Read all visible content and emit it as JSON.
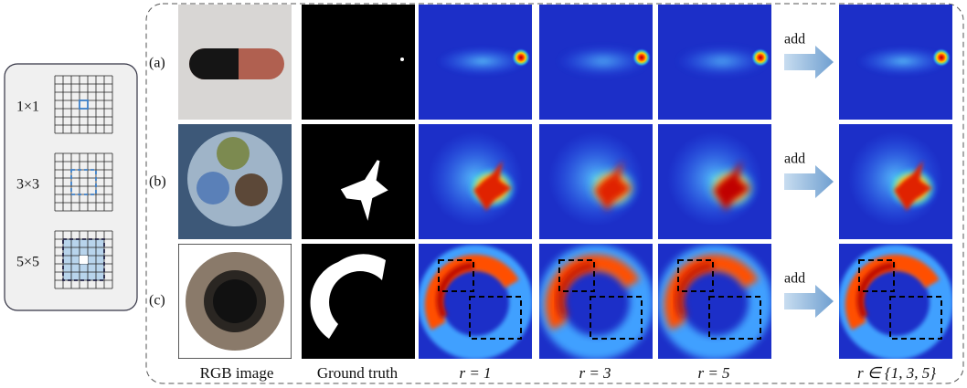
{
  "legend": {
    "kernels": [
      "1×1",
      "3×3",
      "5×5"
    ]
  },
  "rows": [
    {
      "label": "(a)",
      "action": "add"
    },
    {
      "label": "(b)",
      "action": "add"
    },
    {
      "label": "(c)",
      "action": "add"
    }
  ],
  "columns": [
    "RGB image",
    "Ground truth",
    "r = 1",
    "r = 3",
    "r = 5",
    "r ∈ {1, 3, 5}"
  ]
}
